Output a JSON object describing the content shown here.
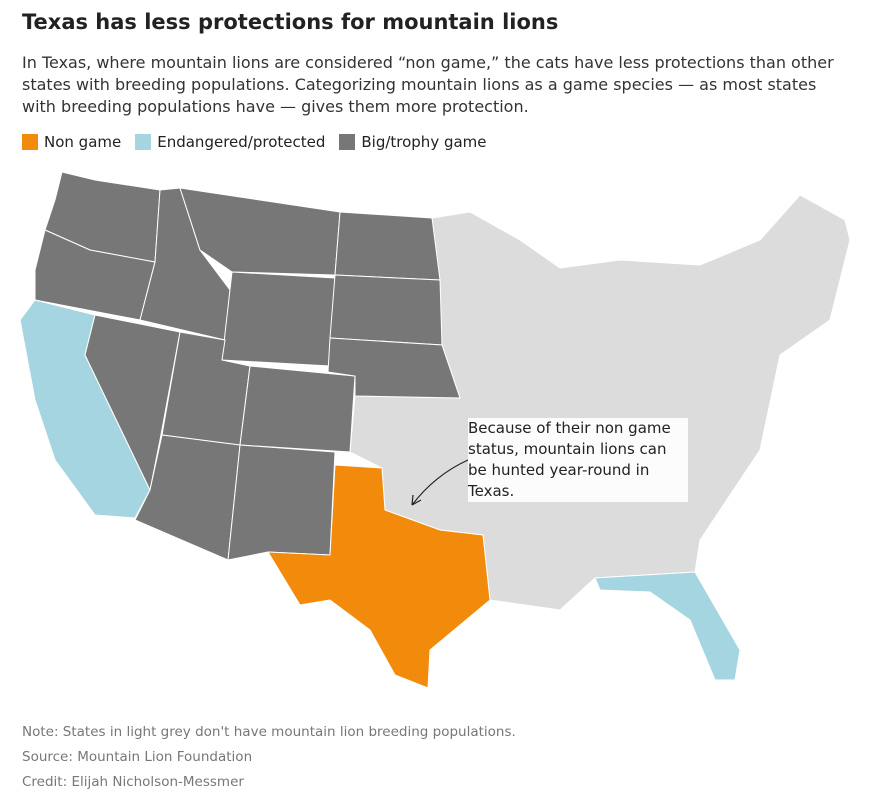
{
  "title": "Texas has less protections for mountain lions",
  "subtitle": "In Texas, where mountain lions are considered “non game,” the cats have less protections than other states with breeding populations. Categorizing mountain lions as a game species — as most states with breeding populations have — gives them more protection.",
  "legend": [
    {
      "label": "Non game",
      "color": "#f28b0c"
    },
    {
      "label": "Endangered/protected",
      "color": "#a6d5e2"
    },
    {
      "label": "Big/trophy game",
      "color": "#777777"
    }
  ],
  "annotation": "Because of their non game status, mountain lions can be hunted year-round in Texas.",
  "notes": [
    "Note: States in light grey don't have mountain lion breeding populations.",
    "Source: Mountain Lion Foundation",
    "Credit: Elijah Nicholson-Messmer"
  ]
}
